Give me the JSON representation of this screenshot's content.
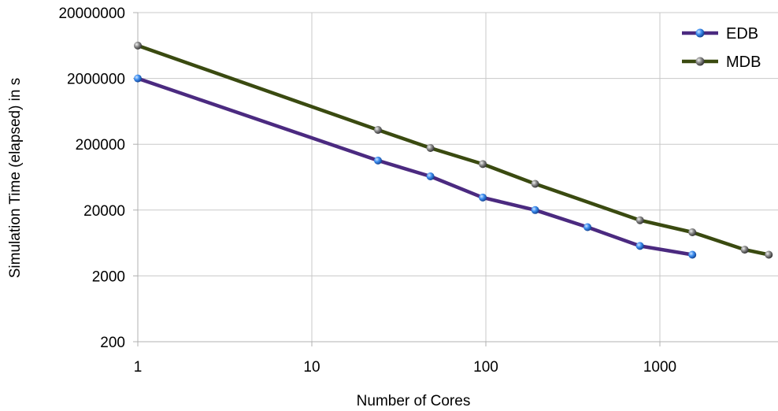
{
  "chart_data": {
    "type": "line",
    "xscale": "log",
    "yscale": "log",
    "xlabel": "Number of Cores",
    "ylabel": "Simulation Time (elapsed) in s",
    "xlim": [
      1,
      4800
    ],
    "ylim": [
      200,
      20000000
    ],
    "grid": true,
    "legend_position": "top-right",
    "x_ticks": [
      {
        "value": 1,
        "label": "1"
      },
      {
        "value": 10,
        "label": "10"
      },
      {
        "value": 100,
        "label": "100"
      },
      {
        "value": 1000,
        "label": "1000"
      }
    ],
    "y_ticks": [
      {
        "value": 200,
        "label": "200"
      },
      {
        "value": 2000,
        "label": "2000"
      },
      {
        "value": 20000,
        "label": "20000"
      },
      {
        "value": 200000,
        "label": "200000"
      },
      {
        "value": 2000000,
        "label": "2000000"
      },
      {
        "value": 20000000,
        "label": "20000000"
      }
    ],
    "series": [
      {
        "name": "EDB",
        "color": "#4b2a80",
        "marker_color": "#2e7de0",
        "x": [
          1,
          24,
          48,
          96,
          192,
          384,
          768,
          1536
        ],
        "y": [
          2000000,
          113000,
          65000,
          31000,
          20000,
          11000,
          5700,
          4200
        ]
      },
      {
        "name": "MDB",
        "color": "#3a4a10",
        "marker_color": "#6a6a6a",
        "x": [
          1,
          24,
          48,
          96,
          192,
          768,
          1536,
          3072,
          4224
        ],
        "y": [
          6300000,
          330000,
          175000,
          100000,
          50000,
          14000,
          9200,
          5000,
          4200
        ]
      }
    ]
  }
}
